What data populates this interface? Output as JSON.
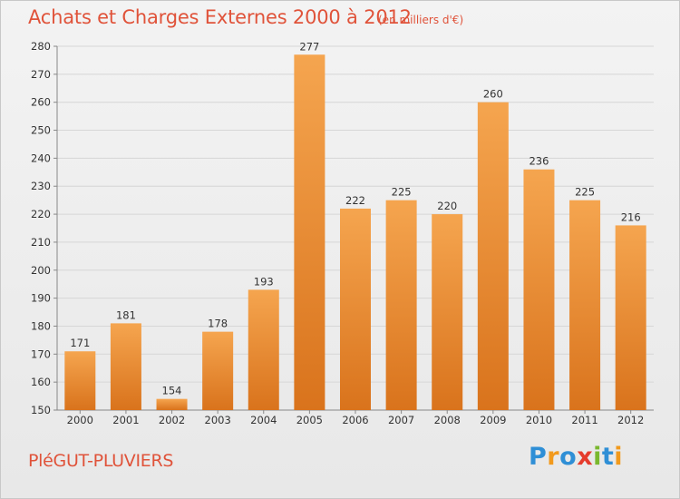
{
  "header": {
    "title": "Achats et Charges Externes 2000 à 2012",
    "unit": "(en milliers d'€)"
  },
  "footer": {
    "commune": "PléGUT-PLUVIERS",
    "logo_text": "Proxiti",
    "logo_letters": [
      {
        "ch": "P",
        "color": "#2f8fd6"
      },
      {
        "ch": "r",
        "color": "#f29a1d"
      },
      {
        "ch": "o",
        "color": "#2f8fd6"
      },
      {
        "ch": "x",
        "color": "#e53b2c"
      },
      {
        "ch": "i",
        "color": "#7ab82e"
      },
      {
        "ch": "t",
        "color": "#2f8fd6"
      },
      {
        "ch": "i",
        "color": "#f29a1d"
      }
    ]
  },
  "chart_data": {
    "type": "bar",
    "title": "Achats et Charges Externes 2000 à 2012",
    "subtitle": "(en milliers d'€)",
    "categories": [
      "2000",
      "2001",
      "2002",
      "2003",
      "2004",
      "2005",
      "2006",
      "2007",
      "2008",
      "2009",
      "2010",
      "2011",
      "2012"
    ],
    "values": [
      171,
      181,
      154,
      178,
      193,
      277,
      222,
      225,
      220,
      260,
      236,
      225,
      216
    ],
    "ylim": [
      150,
      280
    ],
    "yticks": [
      150,
      160,
      170,
      180,
      190,
      200,
      210,
      220,
      230,
      240,
      250,
      260,
      270,
      280
    ],
    "grid": true,
    "bar_color_top": "#f5a54f",
    "bar_color_bottom": "#d9731c"
  }
}
